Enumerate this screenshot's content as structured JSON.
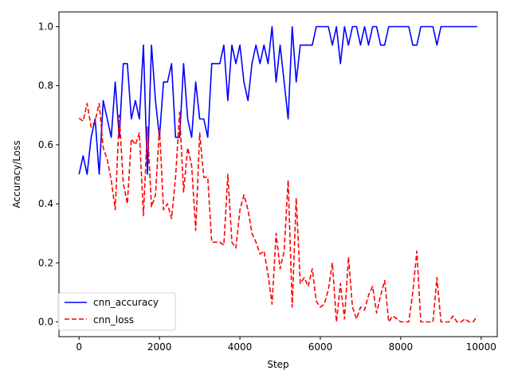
{
  "chart_data": {
    "type": "line",
    "title": "",
    "xlabel": "Step",
    "ylabel": "Accuracy/Loss",
    "xlim": [
      -500,
      10400
    ],
    "ylim": [
      -0.05,
      1.05
    ],
    "xticks": [
      0,
      2000,
      4000,
      6000,
      8000,
      10000
    ],
    "yticks": [
      0.0,
      0.2,
      0.4,
      0.6,
      0.8,
      1.0
    ],
    "xtick_labels": [
      "0",
      "2000",
      "4000",
      "6000",
      "8000",
      "10000"
    ],
    "ytick_labels": [
      "0.0",
      "0.2",
      "0.4",
      "0.6",
      "0.8",
      "1.0"
    ],
    "legend_position": "lower-left",
    "series": [
      {
        "name": "cnn_accuracy",
        "color": "#0000ff",
        "style": "solid",
        "x": [
          0,
          100,
          200,
          300,
          400,
          500,
          600,
          700,
          800,
          900,
          1000,
          1100,
          1200,
          1300,
          1400,
          1500,
          1600,
          1700,
          1800,
          1900,
          2000,
          2100,
          2200,
          2300,
          2400,
          2500,
          2600,
          2700,
          2800,
          2900,
          3000,
          3100,
          3200,
          3300,
          3400,
          3500,
          3600,
          3700,
          3800,
          3900,
          4000,
          4100,
          4200,
          4300,
          4400,
          4500,
          4600,
          4700,
          4800,
          4900,
          5000,
          5100,
          5200,
          5300,
          5400,
          5500,
          5600,
          5700,
          5800,
          5900,
          6000,
          6100,
          6200,
          6300,
          6400,
          6500,
          6600,
          6700,
          6800,
          6900,
          7000,
          7100,
          7200,
          7300,
          7400,
          7500,
          7600,
          7700,
          7800,
          7900,
          8000,
          8100,
          8200,
          8300,
          8400,
          8500,
          8600,
          8700,
          8800,
          8900,
          9000,
          9100,
          9200,
          9300,
          9400,
          9500,
          9600,
          9700,
          9800,
          9900
        ],
        "values": [
          0.5,
          0.5625,
          0.5,
          0.625,
          0.6875,
          0.5,
          0.75,
          0.6875,
          0.625,
          0.8125,
          0.625,
          0.875,
          0.875,
          0.6875,
          0.75,
          0.6875,
          0.9375,
          0.5,
          0.9375,
          0.75,
          0.625,
          0.8125,
          0.8125,
          0.875,
          0.625,
          0.625,
          0.875,
          0.6875,
          0.625,
          0.8125,
          0.6875,
          0.6875,
          0.625,
          0.875,
          0.875,
          0.875,
          0.9375,
          0.75,
          0.9375,
          0.875,
          0.9375,
          0.8125,
          0.75,
          0.875,
          0.9375,
          0.875,
          0.9375,
          0.875,
          1.0,
          0.8125,
          0.9375,
          0.8125,
          0.6875,
          1.0,
          0.8125,
          0.9375,
          0.9375,
          0.9375,
          0.9375,
          1.0,
          1.0,
          1.0,
          1.0,
          0.9375,
          1.0,
          0.875,
          1.0,
          0.9375,
          1.0,
          1.0,
          0.9375,
          1.0,
          0.9375,
          1.0,
          1.0,
          0.9375,
          0.9375,
          1.0,
          1.0,
          1.0,
          1.0,
          1.0,
          1.0,
          0.9375,
          0.9375,
          1.0,
          1.0,
          1.0,
          1.0,
          0.9375,
          1.0,
          1.0,
          1.0,
          1.0,
          1.0,
          1.0,
          1.0,
          1.0,
          1.0,
          1.0
        ]
      },
      {
        "name": "cnn_loss",
        "color": "#ff0000",
        "style": "dashed",
        "x": [
          0,
          100,
          200,
          300,
          400,
          500,
          600,
          700,
          800,
          900,
          1000,
          1100,
          1200,
          1300,
          1400,
          1500,
          1600,
          1700,
          1800,
          1900,
          2000,
          2100,
          2200,
          2300,
          2400,
          2500,
          2600,
          2700,
          2800,
          2900,
          3000,
          3100,
          3200,
          3300,
          3400,
          3500,
          3600,
          3700,
          3800,
          3900,
          4000,
          4100,
          4200,
          4300,
          4400,
          4500,
          4600,
          4700,
          4800,
          4900,
          5000,
          5100,
          5200,
          5300,
          5400,
          5500,
          5600,
          5700,
          5800,
          5900,
          6000,
          6100,
          6200,
          6300,
          6400,
          6500,
          6600,
          6700,
          6800,
          6900,
          7000,
          7100,
          7200,
          7300,
          7400,
          7500,
          7600,
          7700,
          7800,
          7900,
          8000,
          8100,
          8200,
          8300,
          8400,
          8500,
          8600,
          8700,
          8800,
          8900,
          9000,
          9100,
          9200,
          9300,
          9400,
          9500,
          9600,
          9700,
          9800,
          9900
        ],
        "values": [
          0.69,
          0.68,
          0.74,
          0.66,
          0.68,
          0.74,
          0.59,
          0.55,
          0.48,
          0.38,
          0.7,
          0.47,
          0.4,
          0.62,
          0.6,
          0.64,
          0.36,
          0.66,
          0.39,
          0.43,
          0.66,
          0.38,
          0.4,
          0.35,
          0.49,
          0.71,
          0.44,
          0.59,
          0.53,
          0.31,
          0.64,
          0.49,
          0.49,
          0.27,
          0.27,
          0.27,
          0.26,
          0.5,
          0.27,
          0.25,
          0.38,
          0.43,
          0.38,
          0.3,
          0.27,
          0.23,
          0.24,
          0.16,
          0.06,
          0.3,
          0.18,
          0.24,
          0.48,
          0.05,
          0.42,
          0.13,
          0.15,
          0.12,
          0.18,
          0.07,
          0.05,
          0.06,
          0.11,
          0.2,
          0.0,
          0.13,
          0.01,
          0.22,
          0.05,
          0.01,
          0.05,
          0.04,
          0.09,
          0.12,
          0.03,
          0.09,
          0.14,
          0.0,
          0.02,
          0.01,
          0.0,
          0.0,
          0.0,
          0.1,
          0.24,
          0.0,
          0.0,
          0.0,
          0.0,
          0.15,
          0.0,
          0.0,
          0.0,
          0.02,
          0.0,
          0.0,
          0.01,
          0.0,
          0.0,
          0.02
        ]
      }
    ]
  }
}
